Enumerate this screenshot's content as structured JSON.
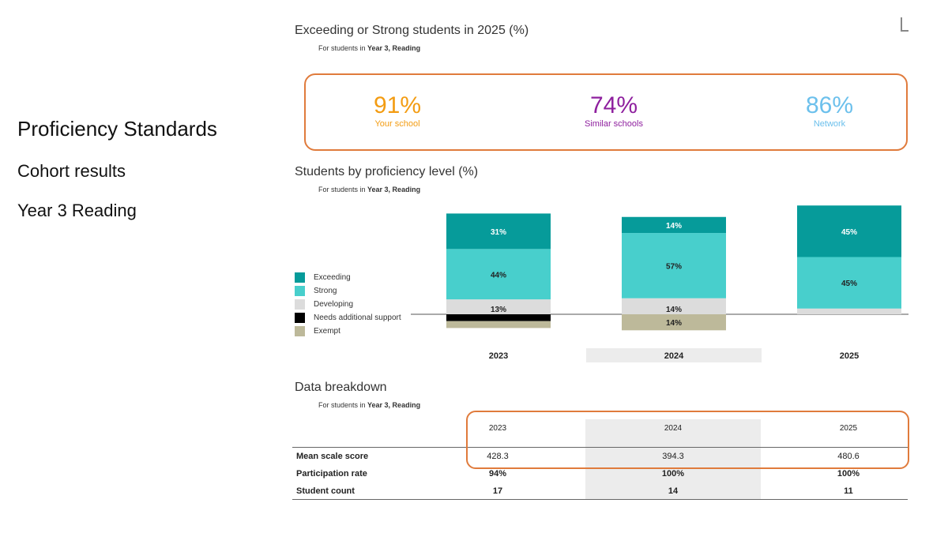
{
  "left": {
    "title": "Proficiency Standards",
    "subtitle": "Cohort results",
    "subtitle2": "Year 3 Reading"
  },
  "kpi_section": {
    "title": "Exceeding or Strong students in 2025 (%)",
    "sub_prefix": "For students in ",
    "sub_bold": "Year 3, Reading",
    "items": [
      {
        "value": "91%",
        "label": "Your school",
        "color": "#f39c12"
      },
      {
        "value": "74%",
        "label": "Similar schools",
        "color": "#8e1f9e"
      },
      {
        "value": "86%",
        "label": "Network",
        "color": "#6cc0ec"
      }
    ]
  },
  "chart_section": {
    "title": "Students by proficiency level (%)",
    "sub_prefix": "For students in ",
    "sub_bold": "Year 3, Reading"
  },
  "chart_data": {
    "type": "bar",
    "stacked": true,
    "categories": [
      "2023",
      "2024",
      "2025"
    ],
    "highlighted_category": "2024",
    "series_above_baseline": [
      {
        "name": "Developing",
        "color": "#dcdcdc",
        "values": [
          13,
          14,
          5
        ]
      },
      {
        "name": "Strong",
        "color": "#48cfcc",
        "values": [
          44,
          57,
          45
        ]
      },
      {
        "name": "Exceeding",
        "color": "#069b9a",
        "values": [
          31,
          14,
          45
        ]
      }
    ],
    "series_below_baseline": [
      {
        "name": "Needs additional support",
        "color": "#000000",
        "values": [
          6,
          0,
          0
        ]
      },
      {
        "name": "Exempt",
        "color": "#bdb99a",
        "values": [
          6,
          14,
          0
        ]
      }
    ],
    "data_labels": {
      "Exceeding": [
        "31%",
        "14%",
        "45%"
      ],
      "Strong": [
        "44%",
        "57%",
        "45%"
      ],
      "Developing": [
        "13%",
        "14%",
        ""
      ],
      "Needs additional support": [
        "",
        "",
        ""
      ],
      "Exempt": [
        "",
        "14%",
        ""
      ]
    },
    "legend": [
      "Exceeding",
      "Strong",
      "Developing",
      "Needs additional support",
      "Exempt"
    ],
    "legend_position": "left"
  },
  "table_section": {
    "title": "Data breakdown",
    "sub_prefix": "For students in ",
    "sub_bold": "Year 3, Reading",
    "years": [
      "2023",
      "2024",
      "2025"
    ],
    "rows": [
      {
        "label": "Mean scale score",
        "values": [
          "428.3",
          "394.3",
          "480.6"
        ]
      },
      {
        "label": "Participation rate",
        "values": [
          "94%",
          "100%",
          "100%"
        ]
      },
      {
        "label": "Student count",
        "values": [
          "17",
          "14",
          "11"
        ]
      }
    ]
  },
  "colors": {
    "highlight_border": "#e07b3c",
    "highlight_column": "#ececec"
  }
}
